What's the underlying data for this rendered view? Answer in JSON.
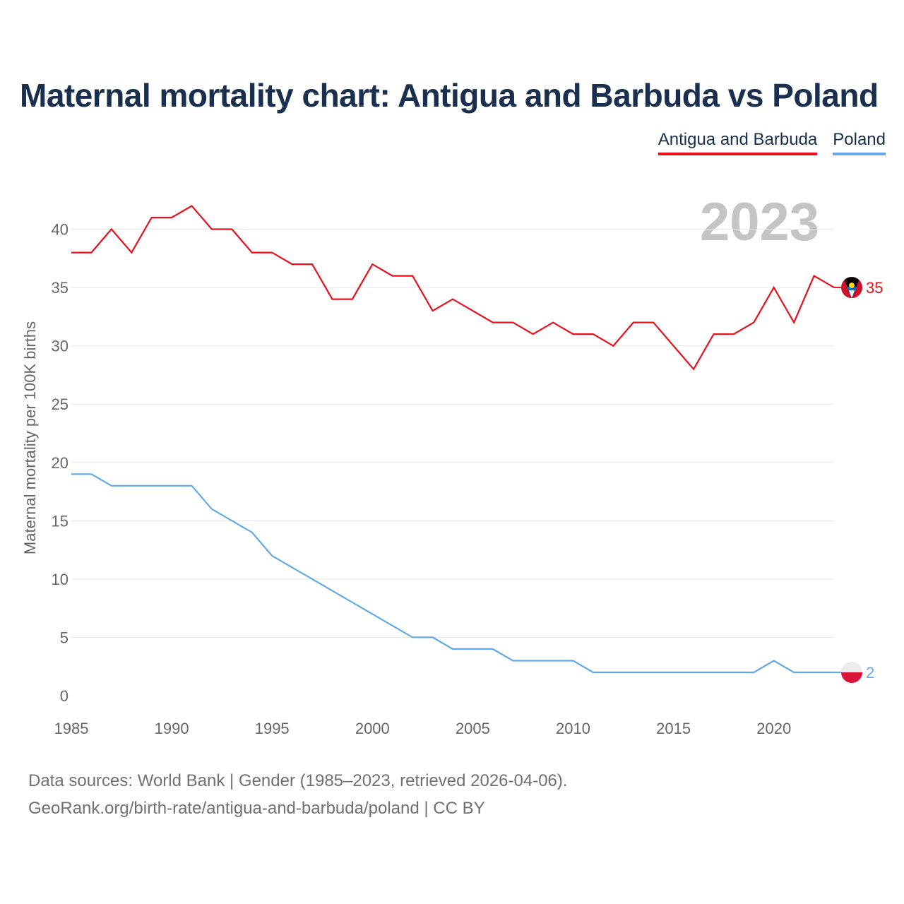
{
  "title": "Maternal mortality chart: Antigua and Barbuda vs Poland",
  "legend": [
    {
      "label": "Antigua and Barbuda",
      "color": "#e8111b"
    },
    {
      "label": "Poland",
      "color": "#63a8e8"
    }
  ],
  "year_watermark": "2023",
  "footer": {
    "line1": "Data sources: World Bank | Gender (1985–2023, retrieved 2026-04-06).",
    "line2": "GeoRank.org/birth-rate/antigua-and-barbuda/poland | CC BY"
  },
  "chart_data": {
    "type": "line",
    "title": "Maternal mortality chart: Antigua and Barbuda vs Poland",
    "xlabel": "",
    "ylabel": "Maternal mortality per 100K births",
    "xlim": [
      1985,
      2023
    ],
    "ylim": [
      0,
      43
    ],
    "xticks": [
      1985,
      1990,
      1995,
      2000,
      2005,
      2010,
      2015,
      2020
    ],
    "yticks": [
      0,
      5,
      10,
      15,
      20,
      25,
      30,
      35,
      40
    ],
    "grid": true,
    "legend_position": "top-right",
    "x": [
      1985,
      1986,
      1987,
      1988,
      1989,
      1990,
      1991,
      1992,
      1993,
      1994,
      1995,
      1996,
      1997,
      1998,
      1999,
      2000,
      2001,
      2002,
      2003,
      2004,
      2005,
      2006,
      2007,
      2008,
      2009,
      2010,
      2011,
      2012,
      2013,
      2014,
      2015,
      2016,
      2017,
      2018,
      2019,
      2020,
      2021,
      2022,
      2023
    ],
    "series": [
      {
        "name": "Antigua and Barbuda",
        "color": "#e8111b",
        "end_label": "35",
        "flag_icon": "antigua-and-barbuda-flag-icon",
        "values": [
          38,
          38,
          40,
          38,
          41,
          41,
          42,
          40,
          40,
          38,
          38,
          37,
          37,
          34,
          34,
          37,
          36,
          36,
          33,
          34,
          33,
          32,
          32,
          31,
          32,
          31,
          31,
          30,
          32,
          32,
          30,
          28,
          31,
          31,
          32,
          35,
          32,
          36,
          35
        ]
      },
      {
        "name": "Poland",
        "color": "#63a8e8",
        "end_label": "2",
        "flag_icon": "poland-flag-icon",
        "values": [
          19,
          19,
          18,
          18,
          18,
          18,
          18,
          16,
          15,
          14,
          12,
          11,
          10,
          9,
          8,
          7,
          6,
          5,
          5,
          4,
          4,
          4,
          3,
          3,
          3,
          3,
          2,
          2,
          2,
          2,
          2,
          2,
          2,
          2,
          2,
          3,
          2,
          2,
          2
        ]
      }
    ]
  }
}
